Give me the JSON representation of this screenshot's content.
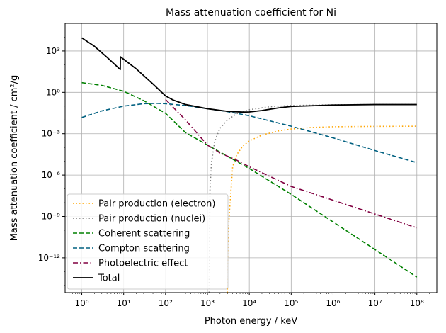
{
  "chart_data": {
    "type": "line",
    "title": "Mass attenuation coefficient for Ni",
    "xlabel": "Photon energy / keV",
    "ylabel": "Mass attenuation coefficient / cm²/g",
    "x_scale": "log",
    "y_scale": "log",
    "xlim": [
      0.4,
      300000000
    ],
    "ylim": [
      3e-15,
      100000.0
    ],
    "grid": true,
    "legend_position": "lower-left",
    "x_ticks": [
      {
        "value": 1,
        "label": "10⁰"
      },
      {
        "value": 10,
        "label": "10¹"
      },
      {
        "value": 100,
        "label": "10²"
      },
      {
        "value": 1000,
        "label": "10³"
      },
      {
        "value": 10000,
        "label": "10⁴"
      },
      {
        "value": 100000,
        "label": "10⁵"
      },
      {
        "value": 1000000,
        "label": "10⁶"
      },
      {
        "value": 10000000,
        "label": "10⁷"
      },
      {
        "value": 100000000,
        "label": "10⁸"
      }
    ],
    "y_ticks": [
      {
        "value": 1e-12,
        "label": "10⁻¹²"
      },
      {
        "value": 1e-09,
        "label": "10⁻⁹"
      },
      {
        "value": 1e-06,
        "label": "10⁻⁶"
      },
      {
        "value": 0.001,
        "label": "10⁻³"
      },
      {
        "value": 1,
        "label": "10⁰"
      },
      {
        "value": 1000,
        "label": "10³"
      }
    ],
    "series": [
      {
        "name": "Pair production (electron)",
        "color": "#ffa500",
        "dash": "dotted",
        "x": [
          3000,
          3100,
          3300,
          4000,
          5000,
          7000,
          10000,
          20000,
          50000,
          100000,
          300000,
          1000000,
          10000000,
          100000000
        ],
        "y": [
          3e-15,
          1e-11,
          1e-09,
          4e-06,
          3e-05,
          0.00013,
          0.0003,
          0.0008,
          0.0016,
          0.0022,
          0.0028,
          0.0032,
          0.0034,
          0.0035
        ]
      },
      {
        "name": "Pair production (nuclei)",
        "color": "#808080",
        "dash": "dotted",
        "x": [
          1100,
          1150,
          1250,
          1500,
          2000,
          3000,
          5000,
          10000,
          30000,
          100000,
          1000000,
          10000000,
          100000000
        ],
        "y": [
          3e-15,
          1e-07,
          8e-06,
          0.0003,
          0.0025,
          0.01,
          0.028,
          0.055,
          0.09,
          0.11,
          0.125,
          0.13,
          0.13
        ]
      },
      {
        "name": "Coherent scattering",
        "color": "#008000",
        "dash": "dashed",
        "x": [
          1,
          3,
          10,
          30,
          100,
          300,
          1000,
          10000,
          100000,
          1000000,
          10000000,
          100000000
        ],
        "y": [
          5,
          3.2,
          1.2,
          0.25,
          0.03,
          0.0012,
          0.00015,
          3e-06,
          4e-08,
          4e-10,
          4e-12,
          4e-14
        ]
      },
      {
        "name": "Compton scattering",
        "color": "#006080",
        "dash": "dashed",
        "x": [
          1,
          3,
          10,
          30,
          60,
          100,
          300,
          1000,
          3000,
          10000,
          100000,
          1000000,
          10000000,
          100000000
        ],
        "y": [
          0.015,
          0.045,
          0.1,
          0.15,
          0.16,
          0.15,
          0.11,
          0.065,
          0.04,
          0.02,
          0.0035,
          0.0005,
          6e-05,
          8e-06
        ]
      },
      {
        "name": "Photoelectric effect",
        "color": "#800040",
        "dash": "dashdot",
        "x": [
          100,
          300,
          1000,
          2000,
          5000,
          10000,
          100000,
          1000000,
          10000000,
          100000000
        ],
        "y": [
          0.3,
          0.01,
          0.00015,
          4e-05,
          1.2e-05,
          4e-06,
          1.5e-07,
          1.5e-08,
          1.5e-09,
          1.5e-10
        ]
      },
      {
        "name": "Total",
        "color": "#000000",
        "dash": "solid",
        "x": [
          1,
          2,
          4,
          8.3,
          8.34,
          10,
          20,
          50,
          100,
          150,
          300,
          1000,
          3000,
          7000,
          10000,
          20000,
          50000,
          100000,
          1000000,
          10000000,
          100000000
        ],
        "y": [
          9000,
          2200,
          350,
          45,
          380,
          250,
          50,
          4,
          0.55,
          0.28,
          0.13,
          0.065,
          0.042,
          0.037,
          0.038,
          0.048,
          0.075,
          0.095,
          0.12,
          0.13,
          0.13
        ]
      }
    ]
  }
}
